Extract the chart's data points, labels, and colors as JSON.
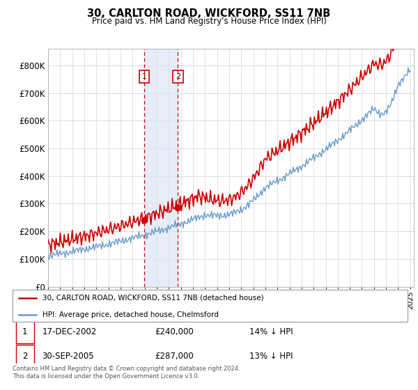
{
  "title": "30, CARLTON ROAD, WICKFORD, SS11 7NB",
  "subtitle": "Price paid vs. HM Land Registry's House Price Index (HPI)",
  "ylim": [
    0,
    860000
  ],
  "yticks": [
    0,
    100000,
    200000,
    300000,
    400000,
    500000,
    600000,
    700000,
    800000
  ],
  "ytick_labels": [
    "£0",
    "£100K",
    "£200K",
    "£300K",
    "£400K",
    "£500K",
    "£600K",
    "£700K",
    "£800K"
  ],
  "sale1_date": 2002.97,
  "sale1_price": 240000,
  "sale2_date": 2005.75,
  "sale2_price": 287000,
  "legend_line1": "30, CARLTON ROAD, WICKFORD, SS11 7NB (detached house)",
  "legend_line2": "HPI: Average price, detached house, Chelmsford",
  "table_row1": [
    "1",
    "17-DEC-2002",
    "£240,000",
    "14% ↓ HPI"
  ],
  "table_row2": [
    "2",
    "30-SEP-2005",
    "£287,000",
    "13% ↓ HPI"
  ],
  "footer": "Contains HM Land Registry data © Crown copyright and database right 2024.\nThis data is licensed under the Open Government Licence v3.0.",
  "price_color": "#cc0000",
  "hpi_color": "#6699cc",
  "shade_color": "#dce6f5"
}
